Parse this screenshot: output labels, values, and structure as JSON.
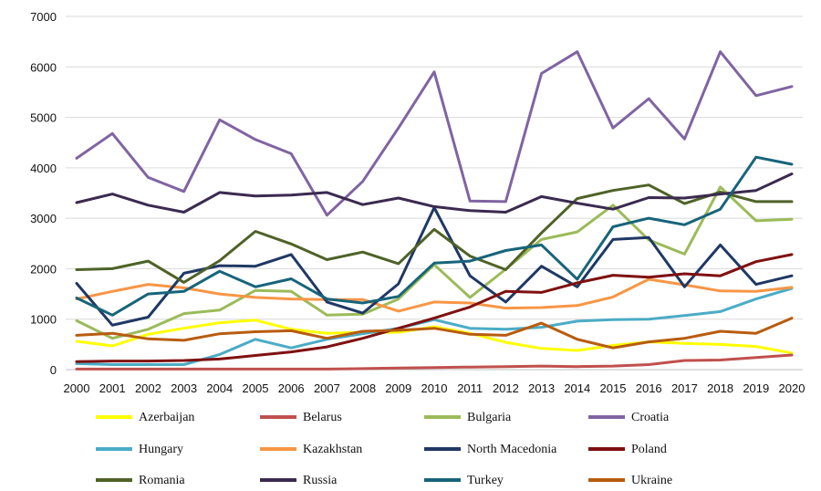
{
  "chart_data": {
    "type": "line",
    "title": "",
    "xlabel": "",
    "ylabel": "",
    "ylim": [
      0,
      7000
    ],
    "y_ticks": [
      0,
      1000,
      2000,
      3000,
      4000,
      5000,
      6000,
      7000
    ],
    "grid": "horizontal",
    "legend_position": "bottom",
    "x": [
      "2000",
      "2001",
      "2002",
      "2003",
      "2004",
      "2005",
      "2006",
      "2007",
      "2008",
      "2009",
      "2010",
      "2011",
      "2012",
      "2013",
      "2014",
      "2015",
      "2016",
      "2017",
      "2018",
      "2019",
      "2020"
    ],
    "series": [
      {
        "name": "Azerbaijan",
        "color": "#ffff00",
        "values": [
          560,
          470,
          700,
          820,
          930,
          980,
          800,
          720,
          740,
          740,
          850,
          720,
          540,
          420,
          380,
          480,
          550,
          520,
          500,
          460,
          330
        ]
      },
      {
        "name": "Belarus",
        "color": "#c0504d",
        "values": [
          10,
          10,
          10,
          10,
          10,
          10,
          10,
          10,
          20,
          30,
          40,
          50,
          60,
          70,
          60,
          70,
          100,
          180,
          190,
          240,
          290
        ]
      },
      {
        "name": "Bulgaria",
        "color": "#9bbb59",
        "values": [
          970,
          620,
          800,
          1110,
          1180,
          1570,
          1550,
          1080,
          1100,
          1400,
          2080,
          1430,
          1990,
          2580,
          2730,
          3260,
          2570,
          2290,
          3620,
          2950,
          2980
        ]
      },
      {
        "name": "Croatia",
        "color": "#8064a2",
        "values": [
          4190,
          4680,
          3810,
          3530,
          4950,
          4560,
          4280,
          3060,
          3730,
          4790,
          5900,
          3340,
          3330,
          5870,
          6300,
          4790,
          5370,
          4570,
          6300,
          5430,
          5610
        ]
      },
      {
        "name": "Hungary",
        "color": "#4bacc6",
        "values": [
          120,
          100,
          100,
          100,
          300,
          600,
          430,
          600,
          710,
          820,
          990,
          820,
          800,
          840,
          960,
          990,
          1000,
          1070,
          1150,
          1400,
          1610
        ]
      },
      {
        "name": "Kazakhstan",
        "color": "#f79646",
        "values": [
          1400,
          1550,
          1690,
          1620,
          1500,
          1430,
          1400,
          1390,
          1390,
          1160,
          1340,
          1320,
          1220,
          1230,
          1270,
          1440,
          1790,
          1680,
          1560,
          1550,
          1630
        ]
      },
      {
        "name": "North Macedonia",
        "color": "#1f3864",
        "values": [
          1710,
          880,
          1040,
          1910,
          2060,
          2050,
          2280,
          1340,
          1120,
          1700,
          3210,
          1860,
          1340,
          2050,
          1640,
          2580,
          2620,
          1640,
          2470,
          1690,
          1860
        ]
      },
      {
        "name": "Poland",
        "color": "#7f1010",
        "values": [
          160,
          170,
          170,
          180,
          210,
          280,
          350,
          450,
          620,
          820,
          1020,
          1240,
          1550,
          1530,
          1720,
          1870,
          1830,
          1900,
          1860,
          2140,
          2280
        ]
      },
      {
        "name": "Romania",
        "color": "#4f6228",
        "values": [
          1980,
          2000,
          2150,
          1730,
          2160,
          2740,
          2490,
          2180,
          2330,
          2100,
          2780,
          2250,
          1980,
          2710,
          3390,
          3550,
          3660,
          3290,
          3520,
          3330,
          3330
        ]
      },
      {
        "name": "Russia",
        "color": "#3b2a4f",
        "values": [
          3310,
          3480,
          3260,
          3120,
          3510,
          3440,
          3460,
          3510,
          3270,
          3400,
          3230,
          3150,
          3120,
          3430,
          3300,
          3180,
          3410,
          3400,
          3480,
          3550,
          3880
        ]
      },
      {
        "name": "Turkey",
        "color": "#17647a",
        "values": [
          1420,
          1080,
          1500,
          1550,
          1950,
          1640,
          1800,
          1400,
          1320,
          1450,
          2110,
          2150,
          2360,
          2470,
          1790,
          2830,
          3000,
          2870,
          3180,
          4210,
          4070
        ]
      },
      {
        "name": "Ukraine",
        "color": "#b85c0f",
        "values": [
          680,
          720,
          610,
          580,
          710,
          750,
          770,
          620,
          760,
          780,
          820,
          700,
          680,
          920,
          600,
          430,
          550,
          620,
          760,
          720,
          1020
        ]
      }
    ]
  }
}
